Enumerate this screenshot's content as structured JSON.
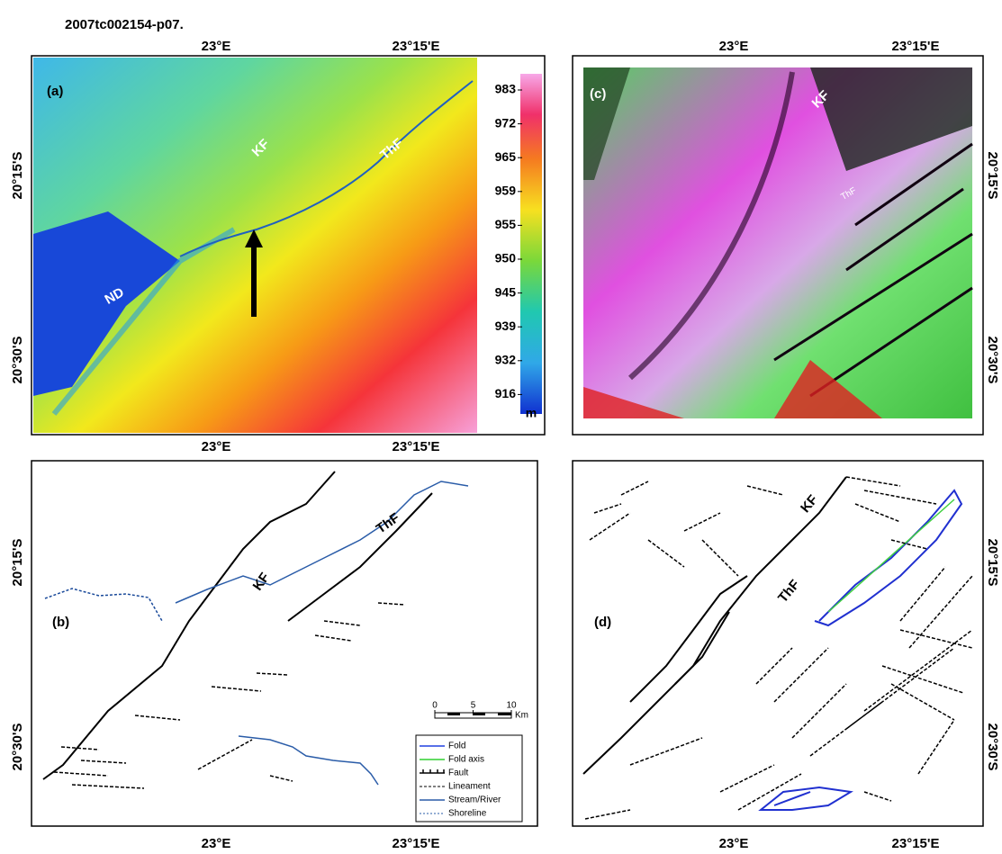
{
  "title": "2007tc002154-p07.",
  "panels": [
    {
      "label": "(a)",
      "top_ticks": [
        "23°E",
        "23°15'E"
      ],
      "bottom_ticks": [
        "23°E",
        "23°15'E"
      ],
      "left_ticks": [
        "20°15'S",
        "20°30'S"
      ],
      "features": [
        "KF",
        "ThF",
        "ND"
      ],
      "colorbar": {
        "ticks": [
          983,
          972,
          965,
          959,
          955,
          950,
          945,
          939,
          932,
          916
        ],
        "unit": "m"
      }
    },
    {
      "label": "(b)",
      "bottom_ticks": [
        "23°E",
        "23°15'E"
      ],
      "left_ticks": [
        "20°15'S",
        "20°30'S"
      ],
      "features": [
        "KF",
        "ThF"
      ],
      "scale_bar": {
        "ticks": [
          0,
          5,
          10
        ],
        "unit": "Km"
      },
      "legend": [
        "Fold",
        "Fold axis",
        "Fault",
        "Lineament",
        "Stream/River",
        "Shoreline"
      ]
    },
    {
      "label": "(c)",
      "top_ticks": [
        "23°E",
        "23°15'E"
      ],
      "right_ticks": [
        "20°15'S",
        "20°30'S"
      ],
      "features": [
        "KF",
        "ThF"
      ]
    },
    {
      "label": "(d)",
      "bottom_ticks": [
        "23°E",
        "23°15'E"
      ],
      "right_ticks": [
        "20°15'S",
        "20°30'S"
      ],
      "features": [
        "KF",
        "ThF"
      ]
    }
  ]
}
